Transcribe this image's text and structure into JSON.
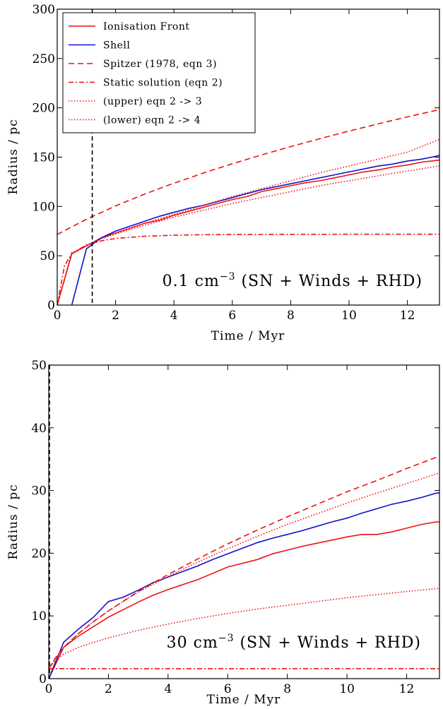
{
  "chart_data": [
    {
      "type": "line",
      "xlabel": "Time / Myr",
      "ylabel": "Radius / pc",
      "xlim": [
        0,
        13.1
      ],
      "ylim": [
        0,
        300
      ],
      "xticks": [
        0,
        2,
        4,
        6,
        8,
        10,
        12
      ],
      "yticks": [
        0,
        50,
        100,
        150,
        200,
        250,
        300
      ],
      "xtick_labels": [
        "0",
        "2",
        "4",
        "6",
        "8",
        "10",
        "12"
      ],
      "ytick_labels": [
        "0",
        "50",
        "100",
        "150",
        "200",
        "250",
        "300"
      ],
      "legend_position": "top-left",
      "annotation": {
        "prefix": "0.1 cm",
        "sup": "−3",
        "suffix": " (SN + Winds + RHD)"
      },
      "vline": {
        "x": 1.2,
        "color": "#000000",
        "style": "dashed"
      },
      "series": [
        {
          "name": "Ionisation Front",
          "color": "#ee1111",
          "style": "solid",
          "x": [
            0,
            0.5,
            1.0,
            1.5,
            2.0,
            2.5,
            3.0,
            3.5,
            4.0,
            4.5,
            5.0,
            5.5,
            6.0,
            6.5,
            7.0,
            7.5,
            8.0,
            8.5,
            9.0,
            9.5,
            10.0,
            10.5,
            11.0,
            11.5,
            12.0,
            12.5,
            13.1
          ],
          "y": [
            0,
            52,
            60,
            68,
            73,
            78,
            83,
            86,
            91,
            95,
            99,
            103,
            107,
            110,
            115,
            118,
            121,
            124,
            126,
            129,
            132,
            135,
            137,
            140,
            142,
            145,
            147
          ]
        },
        {
          "name": "Shell",
          "color": "#1111cc",
          "style": "solid",
          "x": [
            0.5,
            1.0,
            1.5,
            2.0,
            2.5,
            3.0,
            3.5,
            4.0,
            4.5,
            5.0,
            5.5,
            6.0,
            6.5,
            7.0,
            7.5,
            8.0,
            8.5,
            9.0,
            9.5,
            10.0,
            10.5,
            11.0,
            11.5,
            12.0,
            12.5,
            13.0,
            13.1
          ],
          "y": [
            0,
            57,
            68,
            75,
            80,
            85,
            90,
            94,
            98,
            101,
            105,
            109,
            113,
            117,
            120,
            123,
            126,
            129,
            132,
            135,
            138,
            141,
            143,
            146,
            148,
            151,
            152
          ]
        },
        {
          "name": "Spitzer (1978, eqn 3)",
          "color": "#ee1111",
          "style": "dashed",
          "x": [
            0,
            1,
            2,
            3,
            4,
            5,
            6,
            7,
            8,
            9,
            10,
            11,
            12,
            13.1
          ],
          "y": [
            71.6,
            87.0,
            100.5,
            112.6,
            123.6,
            133.8,
            143.3,
            152.2,
            160.7,
            168.7,
            176.4,
            183.7,
            190.8,
            198.2
          ]
        },
        {
          "name": "Static solution (eqn 2)",
          "color": "#ee1111",
          "style": "dashdot",
          "x": [
            0,
            0.25,
            0.5,
            1,
            1.5,
            2,
            3,
            4,
            5,
            6,
            8,
            10,
            12,
            13.1
          ],
          "y": [
            0,
            40,
            52,
            61,
            65,
            67.5,
            69.8,
            70.8,
            71.3,
            71.5,
            71.7,
            71.8,
            71.8,
            71.8
          ]
        },
        {
          "name": "(upper) eqn 2 -> 3",
          "color": "#ee1111",
          "style": "dotted",
          "x": [
            0,
            0.5,
            1,
            1.5,
            2,
            3,
            4,
            5,
            6,
            7,
            8,
            9,
            10,
            11,
            12,
            13.1
          ],
          "y": [
            0,
            53,
            60,
            67,
            73,
            83,
            92,
            101,
            110,
            118,
            126,
            134,
            141,
            148,
            155,
            168
          ]
        },
        {
          "name": "(lower) eqn 2 -> 4",
          "color": "#ee1111",
          "style": "dotted",
          "x": [
            0,
            0.5,
            1,
            1.5,
            2,
            3,
            4,
            5,
            6,
            7,
            8,
            9,
            10,
            11,
            12,
            13.1
          ],
          "y": [
            0,
            53,
            60,
            67,
            72,
            81,
            89,
            96,
            103,
            109,
            115,
            121,
            126,
            131,
            136,
            141
          ]
        }
      ]
    },
    {
      "type": "line",
      "xlabel": "Time / Myr",
      "ylabel": "Radius / pc",
      "xlim": [
        0,
        13.1
      ],
      "ylim": [
        0,
        50
      ],
      "xticks": [
        0,
        2,
        4,
        6,
        8,
        10,
        12
      ],
      "yticks": [
        0,
        10,
        20,
        30,
        40,
        50
      ],
      "xtick_labels": [
        "0",
        "2",
        "4",
        "6",
        "8",
        "10",
        "12"
      ],
      "ytick_labels": [
        "0",
        "10",
        "20",
        "30",
        "40",
        "50"
      ],
      "annotation": {
        "prefix": "30 cm",
        "sup": "−3",
        "suffix": " (SN + Winds + RHD)"
      },
      "vline": {
        "x": 0.0,
        "color": "#000000",
        "style": "dashed"
      },
      "series": [
        {
          "name": "Ionisation Front",
          "color": "#ee1111",
          "style": "solid",
          "x": [
            0,
            0.5,
            1,
            1.5,
            2,
            2.5,
            3,
            3.5,
            4,
            4.5,
            5,
            5.5,
            6,
            6.5,
            7,
            7.5,
            8,
            8.5,
            9,
            9.5,
            10,
            10.5,
            11,
            11.5,
            12,
            12.5,
            13,
            13.1
          ],
          "y": [
            0,
            5.0,
            6.8,
            8.3,
            9.8,
            11.0,
            12.2,
            13.3,
            14.2,
            15.0,
            15.8,
            16.8,
            17.8,
            18.4,
            19.0,
            19.9,
            20.5,
            21.1,
            21.6,
            22.1,
            22.6,
            23.0,
            23.0,
            23.4,
            24.0,
            24.6,
            25.0,
            25.0
          ]
        },
        {
          "name": "Shell",
          "color": "#1111cc",
          "style": "solid",
          "x": [
            0,
            0.5,
            1,
            1.5,
            2,
            2.5,
            3,
            3.5,
            4,
            4.5,
            5,
            5.5,
            6,
            6.5,
            7,
            7.5,
            8,
            8.5,
            9,
            9.5,
            10,
            10.5,
            11,
            11.5,
            12,
            12.5,
            13,
            13.1
          ],
          "y": [
            0,
            5.8,
            7.9,
            9.8,
            12.3,
            13.0,
            14.1,
            15.3,
            16.2,
            17.1,
            18.0,
            19.0,
            19.9,
            20.8,
            21.7,
            22.4,
            23.0,
            23.6,
            24.3,
            25.0,
            25.6,
            26.4,
            27.1,
            27.8,
            28.3,
            28.9,
            29.6,
            29.6
          ]
        },
        {
          "name": "Spitzer (1978, eqn 3)",
          "color": "#ee1111",
          "style": "dashed",
          "x": [
            0,
            0.25,
            0.5,
            1,
            1.5,
            2,
            3,
            4,
            5,
            6,
            7,
            8,
            9,
            10,
            11,
            12,
            13.1
          ],
          "y": [
            1.6,
            3.5,
            5.0,
            7.2,
            9.1,
            10.8,
            13.9,
            16.6,
            19.1,
            21.5,
            23.7,
            25.8,
            27.8,
            29.8,
            31.6,
            33.5,
            35.5
          ]
        },
        {
          "name": "Static solution (eqn 2)",
          "color": "#ee1111",
          "style": "dashdot",
          "x": [
            0,
            13.1
          ],
          "y": [
            1.6,
            1.6
          ]
        },
        {
          "name": "(upper) eqn 2 -> 3",
          "color": "#ee1111",
          "style": "dotted",
          "x": [
            0,
            0.5,
            1,
            1.5,
            2,
            3,
            4,
            5,
            6,
            7,
            8,
            9,
            10,
            11,
            12,
            13.1
          ],
          "y": [
            1.6,
            5.0,
            7.2,
            9.1,
            10.8,
            13.8,
            16.3,
            18.6,
            20.7,
            22.7,
            24.6,
            26.3,
            28.0,
            29.6,
            31.1,
            32.8
          ]
        },
        {
          "name": "(lower) eqn 2 -> 4",
          "color": "#ee1111",
          "style": "dotted",
          "x": [
            0,
            0.25,
            0.5,
            1,
            1.5,
            2,
            3,
            4,
            5,
            6,
            7,
            8,
            9,
            10,
            11,
            12,
            13.1
          ],
          "y": [
            1.6,
            3.0,
            3.9,
            5.0,
            5.8,
            6.5,
            7.7,
            8.7,
            9.6,
            10.4,
            11.1,
            11.7,
            12.3,
            12.9,
            13.4,
            13.9,
            14.4
          ]
        }
      ]
    }
  ]
}
